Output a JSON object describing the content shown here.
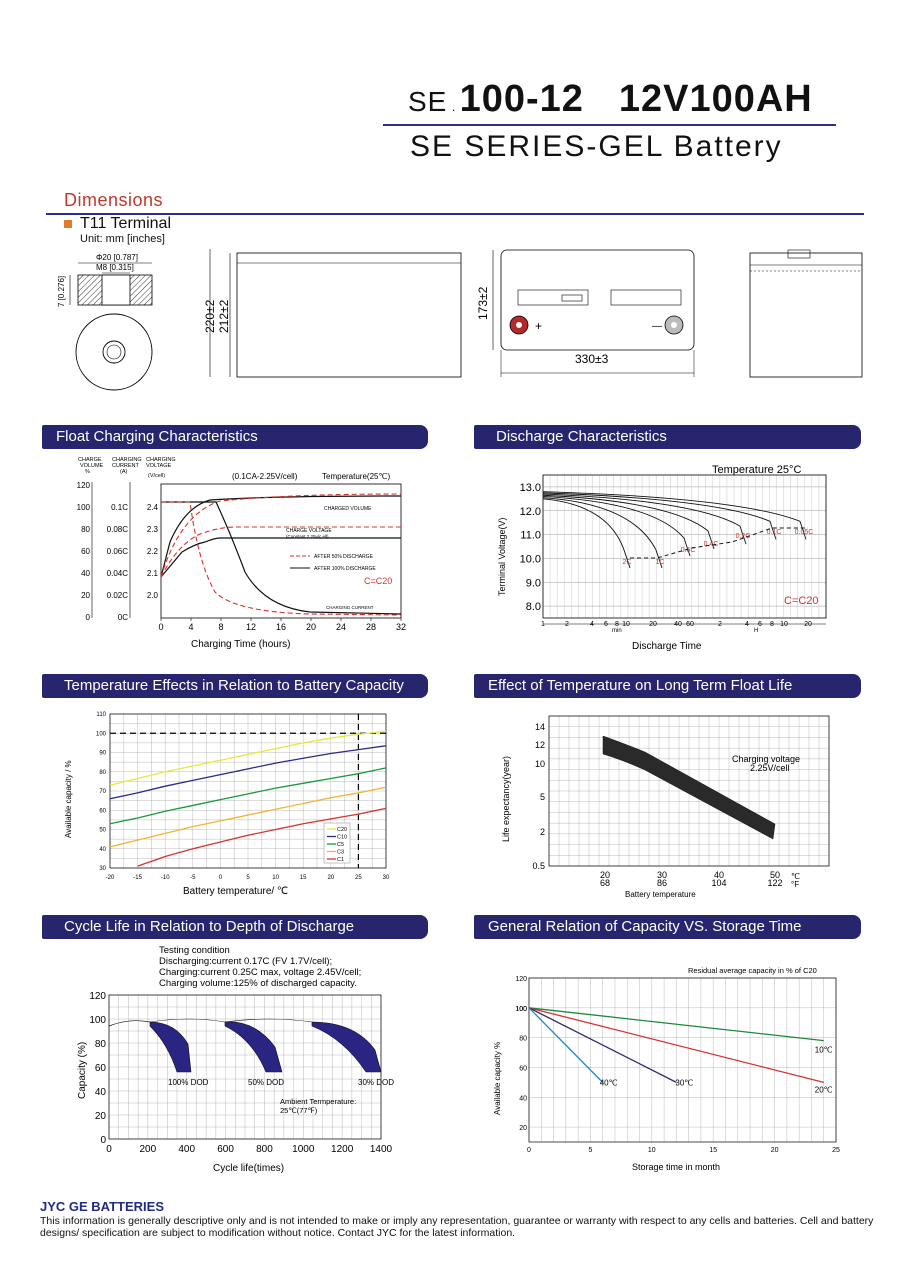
{
  "header": {
    "prefix": "SE",
    "model": "100-12",
    "rating": "12V100AH",
    "series": "SE SERIES-GEL Battery"
  },
  "dimensions": {
    "heading": "Dimensions",
    "terminal": "T11 Terminal",
    "unit": "Unit: mm [inches]",
    "term_dia": "Φ20 [0.787]",
    "term_thread": "M8 [0.315]",
    "term_height": "7 [0.276]",
    "height_total": "220±2",
    "height_case": "212±2",
    "width": "173±2",
    "length": "330±3",
    "plus": "+",
    "minus": "—"
  },
  "charts": {
    "float": {
      "title": "Float Charging Characteristics",
      "col1": [
        "CHARGE",
        "VOLUME",
        "%"
      ],
      "col2": [
        "CHARGING",
        "CURRENT",
        "(A)"
      ],
      "col3": [
        "CHARGING",
        "VOLTAGE",
        "(V/cell)"
      ],
      "condition": "(0.1CA-2.25V/cell)",
      "temperature": "Temperature(25℃)",
      "charged_volume": "CHARGED VOLUME",
      "charge_voltage_1": "CHARGE VOLTAGE",
      "charge_voltage_2": "(Constant 2.25v/c ell)",
      "after50": "AFTER 50% DISCHARGE",
      "after100": "AFTER 100% DISCHARGE",
      "c20": "C=C20",
      "charging_current": "CHARGING CURRENT",
      "xlabel": "Charging Time (hours)"
    },
    "discharge": {
      "title": "Discharge Characteristics",
      "temperature": "Temperature 25°C",
      "ylabel": "Terminal Voltage(V)",
      "xlabel": "Discharge Time",
      "c20": "C=C20",
      "min": "min",
      "h": "H"
    },
    "temp_capacity": {
      "title": "Temperature Effects in Relation to Battery Capacity",
      "ylabel": "Available capacity / %",
      "xlabel": "Battery temperature/ ℃"
    },
    "float_life": {
      "title": "Effect of Temperature on Long Term Float Life",
      "ylabel": "Life expectancy(year)",
      "xlabel": "Battery temperature",
      "note1": "Charging voltage",
      "note2": "2.25V/cell",
      "c": "℃",
      "f": "°F"
    },
    "cycle_life": {
      "title": "Cycle Life in Relation to Depth of Discharge",
      "cond0": "Testing condition",
      "cond1": "Discharging:current 0.17C (FV 1.7V/cell);",
      "cond2": "Charging:current 0.25C max, voltage 2.45V/cell;",
      "cond3": "Charging volume:125% of discharged capacity.",
      "ylabel": "Capacity (%)",
      "xlabel": "Cycle life(times)",
      "dod": "DOD",
      "ambient1": "Ambient Termperature:",
      "ambient2": "25℃(77℉)"
    },
    "storage": {
      "title": "General Relation of Capacity VS. Storage Time",
      "note": "Residual average capacity in % of C20",
      "ylabel": "Available capacity %",
      "xlabel": "Storage time in month"
    }
  },
  "footer": {
    "brand": "JYC GE BATTERIES",
    "text": "This information is generally descriptive only and is not intended to make or imply any representation, guarantee or warranty with respect to any cells and batteries. Cell and battery designs/ specification are subject to modification without notice. Contact JYC for the latest information."
  },
  "chart_data": [
    {
      "type": "line",
      "title": "Float Charging Characteristics",
      "xlabel": "Charging Time (hours)",
      "x": [
        0,
        4,
        8,
        12,
        16,
        20,
        24,
        28,
        32
      ],
      "xlim": [
        0,
        32
      ],
      "y_charge_volume": [
        0,
        20,
        40,
        60,
        80,
        100,
        120
      ],
      "y_charging_current": [
        "0C",
        "0.02C",
        "0.04C",
        "0.06C",
        "0.08C",
        "0.1C"
      ],
      "y_charging_voltage": [
        2.0,
        2.1,
        2.2,
        2.3,
        2.4
      ],
      "series": [
        {
          "name": "AFTER 50% DISCHARGE",
          "style": "dashed",
          "color": "#d6322b"
        },
        {
          "name": "AFTER 100% DISCHARGE",
          "style": "solid",
          "color": "#111111"
        }
      ]
    },
    {
      "type": "line",
      "title": "Discharge Characteristics",
      "ylabel": "Terminal Voltage(V)",
      "xlabel": "Discharge Time",
      "ylim": [
        7.5,
        13.5
      ],
      "y_ticks": [
        8.0,
        9.0,
        10.0,
        11.0,
        12.0,
        13.0
      ],
      "x_ticks_min": [
        1,
        2,
        4,
        6,
        8,
        10,
        20,
        40,
        60
      ],
      "x_ticks_h": [
        2,
        4,
        6,
        8,
        10,
        20
      ],
      "series": [
        {
          "name": "2C",
          "start": 12.5,
          "end_v": 9.6
        },
        {
          "name": "1C",
          "start": 12.55,
          "end_v": 9.6
        },
        {
          "name": "0.6C",
          "start": 12.6,
          "end_v": 10.1
        },
        {
          "name": "0.4C",
          "start": 12.65,
          "end_v": 10.4
        },
        {
          "name": "0.2C",
          "start": 12.7,
          "end_v": 10.6
        },
        {
          "name": "0.1C",
          "start": 12.75,
          "end_v": 10.8
        },
        {
          "name": "0.05C",
          "start": 12.8,
          "end_v": 10.8
        }
      ]
    },
    {
      "type": "line",
      "title": "Temperature Effects in Relation to Battery Capacity",
      "xlabel": "Battery temperature/ ℃",
      "ylabel": "Available capacity / %",
      "x": [
        -20,
        -15,
        -10,
        -5,
        0,
        5,
        10,
        15,
        20,
        25,
        30
      ],
      "xlim": [
        -20,
        30
      ],
      "ylim": [
        30,
        110
      ],
      "y_ticks": [
        30,
        40,
        50,
        60,
        70,
        80,
        90,
        100,
        110
      ],
      "series": [
        {
          "name": "C20",
          "color": "#e8e83a",
          "values": [
            73,
            76.5,
            80,
            83,
            86,
            89,
            92,
            95,
            97.5,
            99.5,
            101
          ]
        },
        {
          "name": "C10",
          "color": "#2a2a88",
          "values": [
            66,
            69,
            72.5,
            75.5,
            78.5,
            81.5,
            84.5,
            87,
            89.5,
            91.5,
            93.5
          ]
        },
        {
          "name": "C5",
          "color": "#1a9a3e",
          "values": [
            53,
            56,
            59.5,
            62.5,
            65.5,
            68.5,
            71.5,
            74,
            76.5,
            79,
            82
          ]
        },
        {
          "name": "C3",
          "color": "#f2b530",
          "values": [
            41,
            44.5,
            48,
            51.5,
            54.5,
            57.5,
            60.5,
            63.5,
            66.5,
            69,
            72
          ]
        },
        {
          "name": "C1",
          "color": "#d6322b",
          "values": [
            null,
            31,
            36,
            40,
            43.5,
            47,
            50,
            53,
            55.5,
            58,
            61
          ]
        }
      ]
    },
    {
      "type": "area",
      "title": "Effect of Temperature on Long Term Float Life",
      "ylabel": "Life expectancy(year)",
      "xlabel": "Battery temperature",
      "x_celsius": [
        20,
        30,
        40,
        50
      ],
      "x_fahrenheit": [
        68,
        86,
        104,
        122
      ],
      "y_ticks": [
        0.5,
        2,
        5,
        10,
        12,
        14
      ],
      "band": {
        "upper": [
          13,
          10.5,
          6.5,
          3
        ],
        "lower": [
          11,
          8.5,
          4.5,
          1.5
        ]
      }
    },
    {
      "type": "line",
      "title": "Cycle Life in Relation to Depth of Discharge",
      "xlabel": "Cycle life(times)",
      "ylabel": "Capacity (%)",
      "x_ticks": [
        0,
        200,
        400,
        600,
        800,
        1000,
        1200,
        1400
      ],
      "y_ticks": [
        0,
        20,
        40,
        60,
        80,
        100,
        120
      ],
      "series": [
        {
          "name": "100% DOD",
          "end_cycles": 450
        },
        {
          "name": "50% DOD",
          "end_cycles": 920
        },
        {
          "name": "30% DOD",
          "end_cycles": 1420
        }
      ]
    },
    {
      "type": "line",
      "title": "General Relation of Capacity VS. Storage Time",
      "xlabel": "Storage time in month",
      "ylabel": "Available capacity %",
      "xlim": [
        0,
        25
      ],
      "ylim": [
        10,
        120
      ],
      "x_ticks": [
        0,
        5,
        10,
        15,
        20,
        25
      ],
      "y_ticks": [
        20,
        40,
        60,
        80,
        100,
        120
      ],
      "series": [
        {
          "name": "10℃",
          "color": "#1a8a3a",
          "x": [
            0,
            24
          ],
          "y": [
            100,
            78
          ]
        },
        {
          "name": "20℃",
          "color": "#d6322b",
          "x": [
            0,
            24
          ],
          "y": [
            100,
            50
          ]
        },
        {
          "name": "30℃",
          "color": "#2a2a70",
          "x": [
            0,
            12
          ],
          "y": [
            100,
            50
          ]
        },
        {
          "name": "40℃",
          "color": "#1f8bc1",
          "x": [
            0,
            6
          ],
          "y": [
            100,
            50
          ]
        }
      ]
    }
  ]
}
